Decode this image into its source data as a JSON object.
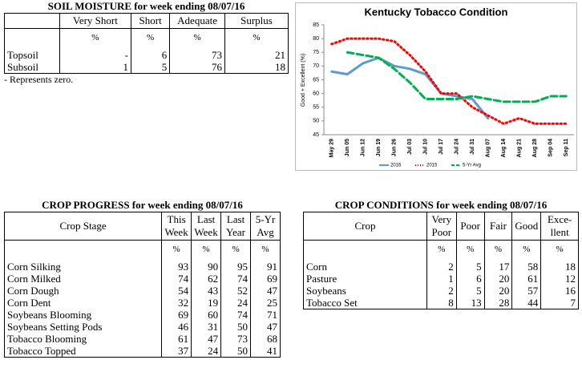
{
  "soil_moisture": {
    "title": "SOIL MOISTURE for week ending 08/07/16",
    "columns": [
      "Very Short",
      "Short",
      "Adequate",
      "Surplus"
    ],
    "units": [
      "%",
      "%",
      "%",
      "%"
    ],
    "rows": [
      {
        "label": "Topsoil",
        "values": [
          "-",
          6,
          73,
          21
        ]
      },
      {
        "label": "Subsoil",
        "values": [
          1,
          5,
          76,
          18
        ]
      }
    ],
    "note": "- Represents zero."
  },
  "chart_data": {
    "type": "line",
    "title": "Kentucky Tobacco Condition",
    "ylabel": "Good + Excellent (%)",
    "categories": [
      "May 29",
      "Jun 05",
      "Jun 12",
      "Jun 19",
      "Jun 26",
      "Jul 03",
      "Jul 10",
      "Jul 17",
      "Jul 24",
      "Jul 31",
      "Aug 07",
      "Aug 14",
      "Aug 21",
      "Aug 28",
      "Sep 04",
      "Sep 11"
    ],
    "series": [
      {
        "name": "2016",
        "color": "#5b9bd5",
        "style": "solid",
        "values": [
          68,
          67,
          71,
          73,
          70,
          69,
          67,
          60,
          59,
          58,
          51,
          null,
          null,
          null,
          null,
          null
        ]
      },
      {
        "name": "2015",
        "color": "#ff0000",
        "style": "dotted",
        "values": [
          78,
          80,
          80,
          80,
          79,
          74,
          68,
          60,
          60,
          55,
          52,
          49,
          51,
          49,
          49,
          49
        ]
      },
      {
        "name": "5-Yr Avg",
        "color": "#00b050",
        "style": "dashed",
        "values": [
          null,
          75,
          74,
          73,
          69,
          64,
          58,
          58,
          58,
          59,
          58,
          57,
          57,
          57,
          59,
          59
        ]
      }
    ],
    "ylim": [
      45,
      85
    ],
    "yticks": [
      45,
      50,
      55,
      60,
      65,
      70,
      75,
      80,
      85
    ],
    "legend": "bottom"
  },
  "crop_progress": {
    "title": "CROP PROGRESS for week ending 08/07/16",
    "stub_header": "Crop Stage",
    "columns": [
      "This Week",
      "Last Week",
      "Last Year",
      "5-Yr Avg"
    ],
    "units": [
      "%",
      "%",
      "%",
      "%"
    ],
    "rows": [
      {
        "label": "Corn Silking",
        "values": [
          93,
          90,
          95,
          91
        ]
      },
      {
        "label": "Corn Milked",
        "values": [
          74,
          62,
          74,
          69
        ]
      },
      {
        "label": "Corn Dough",
        "values": [
          54,
          43,
          52,
          47
        ]
      },
      {
        "label": "Corn Dent",
        "values": [
          32,
          19,
          24,
          25
        ]
      },
      {
        "label": "Soybeans Blooming",
        "values": [
          69,
          60,
          74,
          71
        ]
      },
      {
        "label": "Soybeans Setting Pods",
        "values": [
          46,
          31,
          50,
          47
        ]
      },
      {
        "label": "Tobacco Blooming",
        "values": [
          61,
          47,
          73,
          68
        ]
      },
      {
        "label": "Tobacco Topped",
        "values": [
          37,
          24,
          50,
          41
        ]
      }
    ]
  },
  "crop_conditions": {
    "title": "CROP CONDITIONS for week ending 08/07/16",
    "stub_header": "Crop",
    "columns": [
      "Very Poor",
      "Poor",
      "Fair",
      "Good",
      "Exce-llent"
    ],
    "units": [
      "%",
      "%",
      "%",
      "%",
      "%"
    ],
    "rows": [
      {
        "label": "Corn",
        "values": [
          2,
          5,
          17,
          58,
          18
        ]
      },
      {
        "label": "Pasture",
        "values": [
          1,
          6,
          20,
          61,
          12
        ]
      },
      {
        "label": "Soybeans",
        "values": [
          2,
          5,
          20,
          57,
          16
        ]
      },
      {
        "label": "Tobacco Set",
        "values": [
          8,
          13,
          28,
          44,
          7
        ]
      }
    ]
  }
}
